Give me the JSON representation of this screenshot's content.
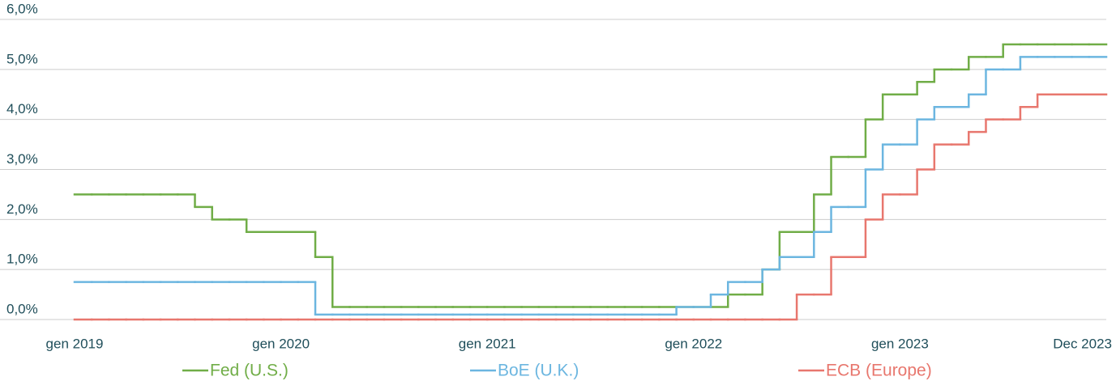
{
  "chart_data": {
    "type": "step",
    "x": [
      "2019-01",
      "2019-02",
      "2019-03",
      "2019-04",
      "2019-05",
      "2019-06",
      "2019-07",
      "2019-08",
      "2019-09",
      "2019-10",
      "2019-11",
      "2019-12",
      "2020-01",
      "2020-02",
      "2020-03",
      "2020-04",
      "2020-05",
      "2020-06",
      "2020-07",
      "2020-08",
      "2020-09",
      "2020-10",
      "2020-11",
      "2020-12",
      "2021-01",
      "2021-02",
      "2021-03",
      "2021-04",
      "2021-05",
      "2021-06",
      "2021-07",
      "2021-08",
      "2021-09",
      "2021-10",
      "2021-11",
      "2021-12",
      "2022-01",
      "2022-02",
      "2022-03",
      "2022-04",
      "2022-05",
      "2022-06",
      "2022-07",
      "2022-08",
      "2022-09",
      "2022-10",
      "2022-11",
      "2022-12",
      "2023-01",
      "2023-02",
      "2023-03",
      "2023-04",
      "2023-05",
      "2023-06",
      "2023-07",
      "2023-08",
      "2023-09",
      "2023-10",
      "2023-11",
      "2023-12"
    ],
    "series": [
      {
        "name": "Fed (U.S.)",
        "color": "#70ad47",
        "values": [
          2.5,
          2.5,
          2.5,
          2.5,
          2.5,
          2.5,
          2.5,
          2.25,
          2.0,
          2.0,
          1.75,
          1.75,
          1.75,
          1.75,
          1.25,
          0.25,
          0.25,
          0.25,
          0.25,
          0.25,
          0.25,
          0.25,
          0.25,
          0.25,
          0.25,
          0.25,
          0.25,
          0.25,
          0.25,
          0.25,
          0.25,
          0.25,
          0.25,
          0.25,
          0.25,
          0.25,
          0.25,
          0.25,
          0.5,
          0.5,
          1.0,
          1.75,
          1.75,
          2.5,
          3.25,
          3.25,
          4.0,
          4.5,
          4.5,
          4.75,
          5.0,
          5.0,
          5.25,
          5.25,
          5.5,
          5.5,
          5.5,
          5.5,
          5.5,
          5.5
        ]
      },
      {
        "name": "BoE (U.K.)",
        "color": "#6cb6e0",
        "values": [
          0.75,
          0.75,
          0.75,
          0.75,
          0.75,
          0.75,
          0.75,
          0.75,
          0.75,
          0.75,
          0.75,
          0.75,
          0.75,
          0.75,
          0.1,
          0.1,
          0.1,
          0.1,
          0.1,
          0.1,
          0.1,
          0.1,
          0.1,
          0.1,
          0.1,
          0.1,
          0.1,
          0.1,
          0.1,
          0.1,
          0.1,
          0.1,
          0.1,
          0.1,
          0.1,
          0.25,
          0.25,
          0.5,
          0.75,
          0.75,
          1.0,
          1.25,
          1.25,
          1.75,
          2.25,
          2.25,
          3.0,
          3.5,
          3.5,
          4.0,
          4.25,
          4.25,
          4.5,
          5.0,
          5.0,
          5.25,
          5.25,
          5.25,
          5.25,
          5.25
        ]
      },
      {
        "name": "ECB (Europe)",
        "color": "#e8776e",
        "values": [
          0,
          0,
          0,
          0,
          0,
          0,
          0,
          0,
          0,
          0,
          0,
          0,
          0,
          0,
          0,
          0,
          0,
          0,
          0,
          0,
          0,
          0,
          0,
          0,
          0,
          0,
          0,
          0,
          0,
          0,
          0,
          0,
          0,
          0,
          0,
          0,
          0,
          0,
          0,
          0,
          0,
          0,
          0.5,
          0.5,
          1.25,
          1.25,
          2.0,
          2.5,
          2.5,
          3.0,
          3.5,
          3.5,
          3.75,
          4.0,
          4.0,
          4.25,
          4.5,
          4.5,
          4.5,
          4.5
        ]
      }
    ],
    "ylim": [
      0,
      6
    ],
    "yticks": [
      {
        "value": 0,
        "label": "0,0%"
      },
      {
        "value": 1,
        "label": "1,0%"
      },
      {
        "value": 2,
        "label": "2,0%"
      },
      {
        "value": 3,
        "label": "3,0%"
      },
      {
        "value": 4,
        "label": "4,0%"
      },
      {
        "value": 5,
        "label": "5,0%"
      },
      {
        "value": 6,
        "label": "6,0%"
      }
    ],
    "xticks": [
      {
        "value": "2019-01",
        "label": "gen 2019"
      },
      {
        "value": "2020-01",
        "label": "gen 2020"
      },
      {
        "value": "2021-01",
        "label": "gen 2021"
      },
      {
        "value": "2022-01",
        "label": "gen 2022"
      },
      {
        "value": "2023-01",
        "label": "gen 2023"
      },
      {
        "value": "2023-12",
        "label": "Dec 2023"
      }
    ],
    "grid": true
  }
}
